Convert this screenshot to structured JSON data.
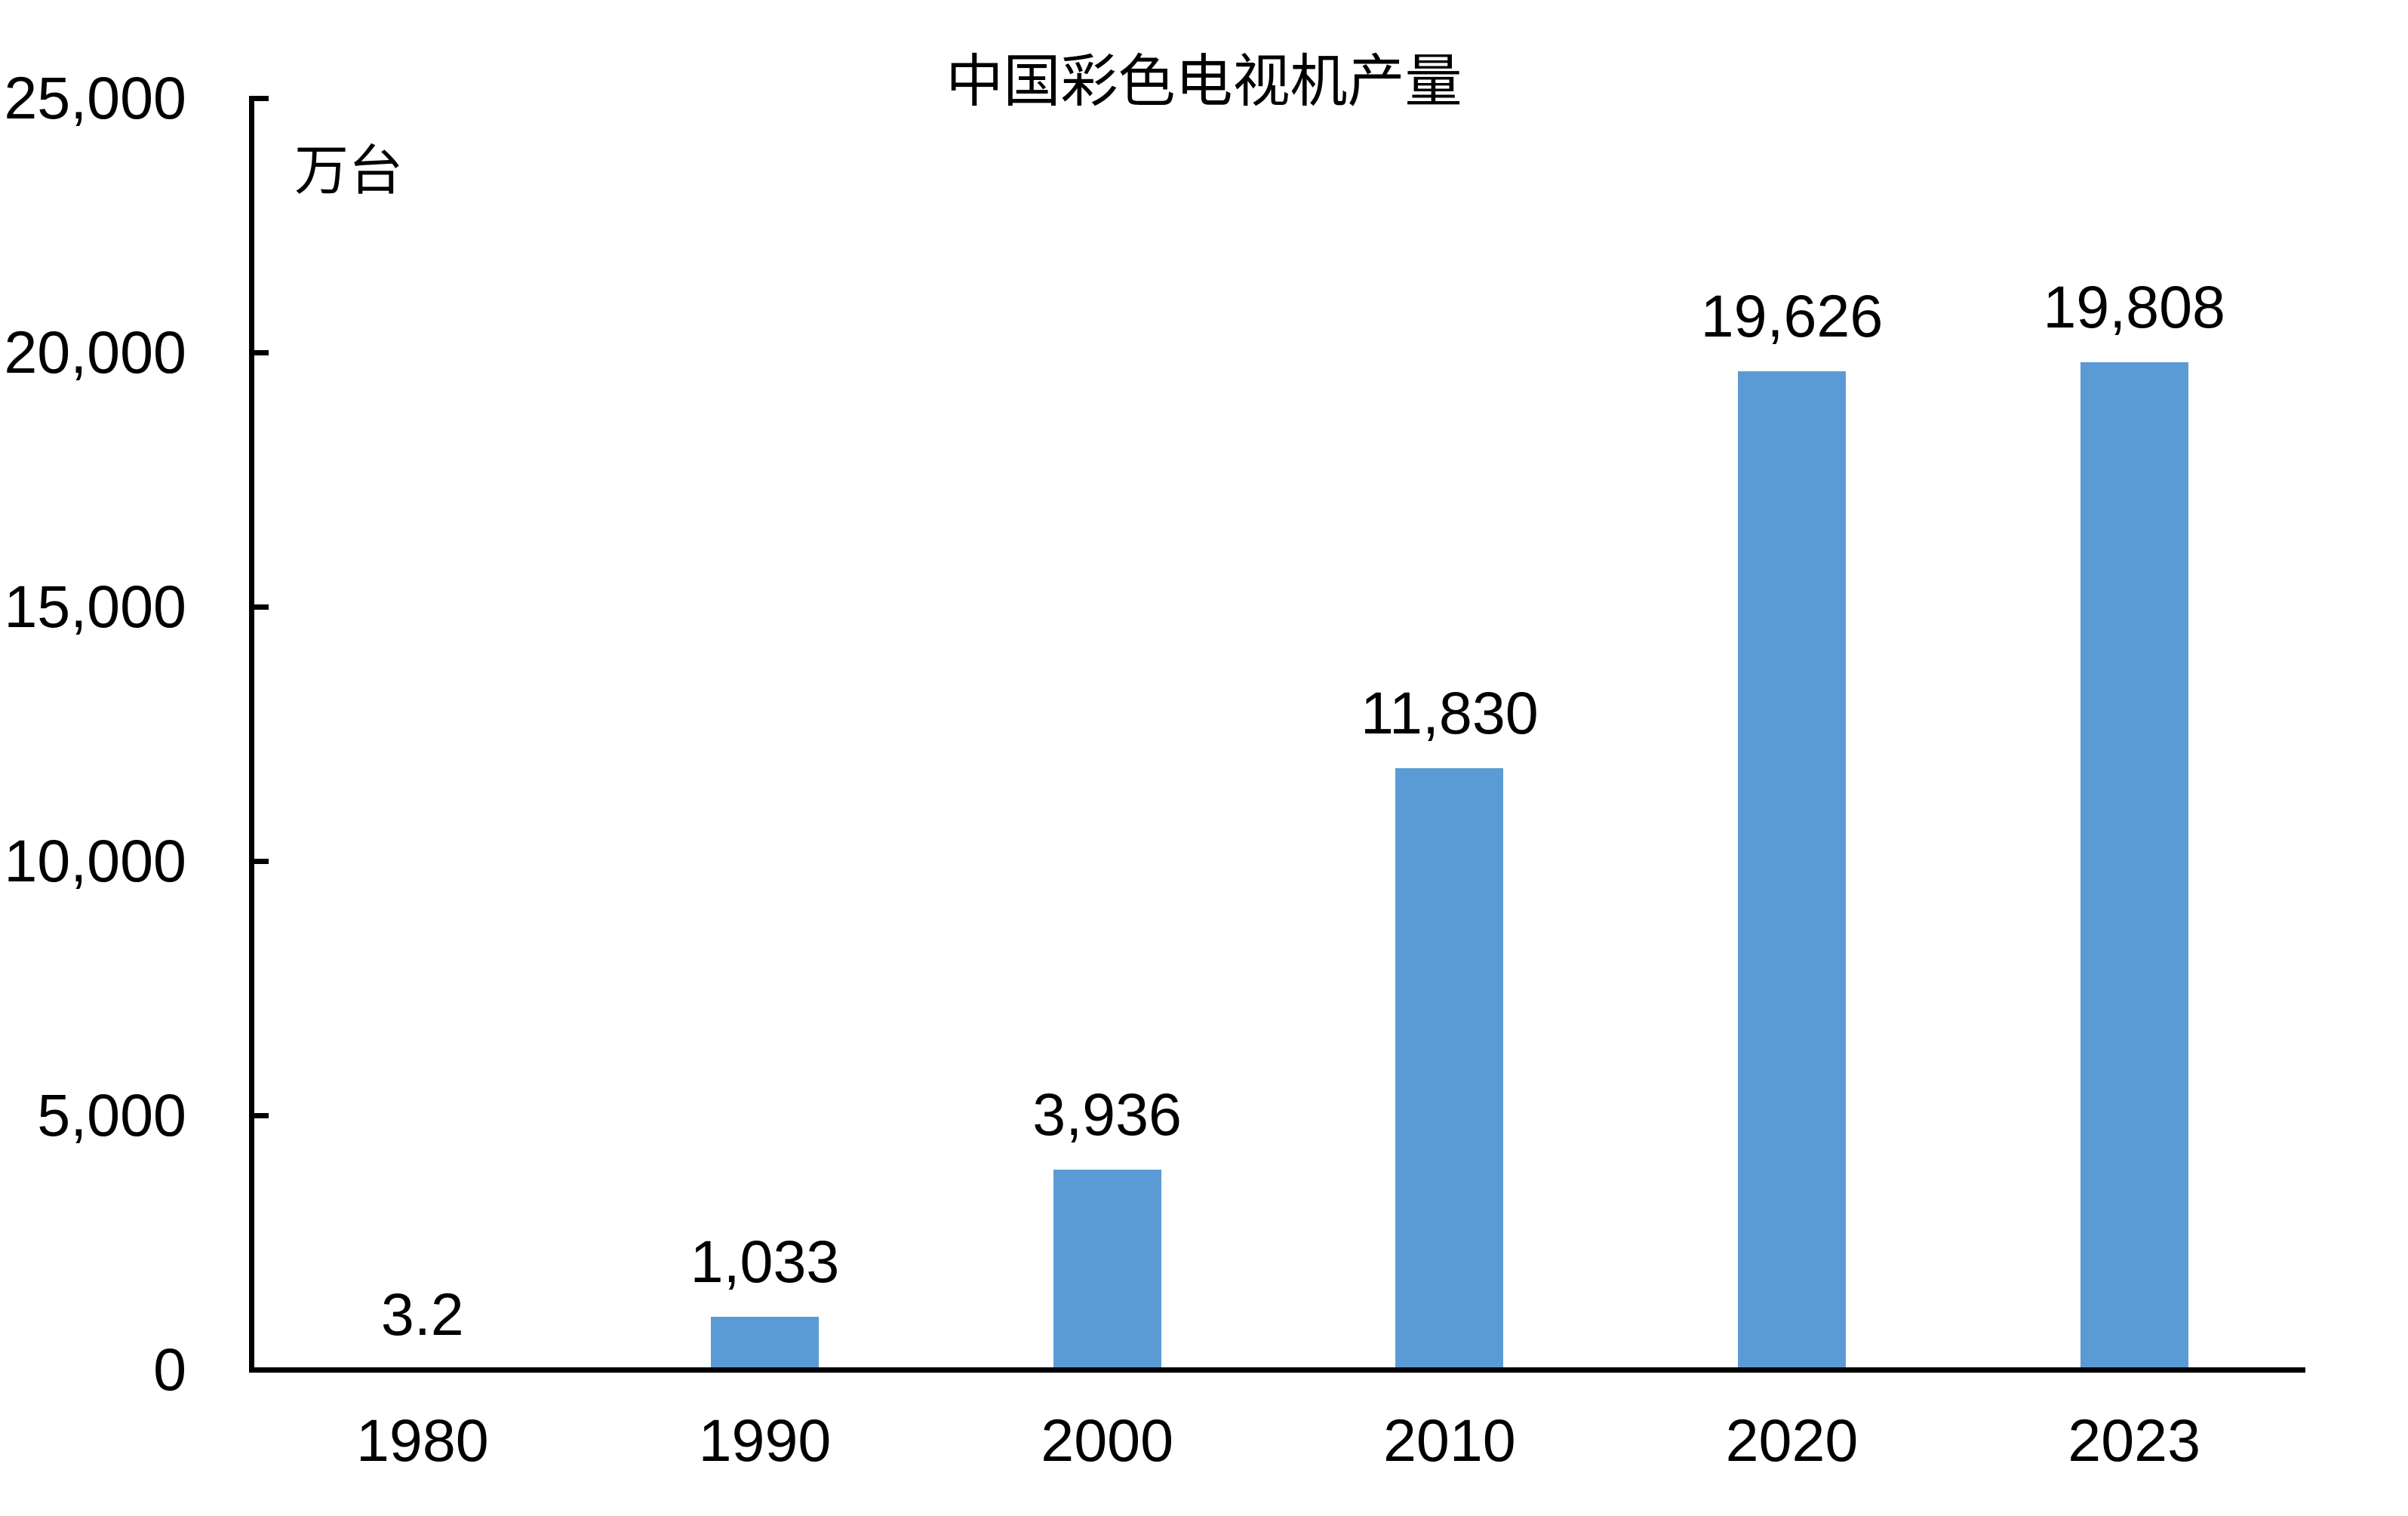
{
  "chart_data": {
    "type": "bar",
    "title": "中国彩色电视机产量",
    "unit_label": "万台",
    "categories": [
      "1980",
      "1990",
      "2000",
      "2010",
      "2020",
      "2023"
    ],
    "values": [
      3.2,
      1033,
      3936,
      11830,
      19626,
      19808
    ],
    "value_labels": [
      "3.2",
      "1,033",
      "3,936",
      "11,830",
      "19,626",
      "19,808"
    ],
    "ylim": [
      0,
      25000
    ],
    "y_tick_step": 5000,
    "y_tick_labels": [
      "0",
      "5,000",
      "10,000",
      "15,000",
      "20,000",
      "25,000"
    ],
    "grid": false,
    "legend_position": "none",
    "bar_color": "#5B9BD5",
    "axis_color": "#000000",
    "text_color": "#000000",
    "background_color": "#FFFFFF"
  }
}
